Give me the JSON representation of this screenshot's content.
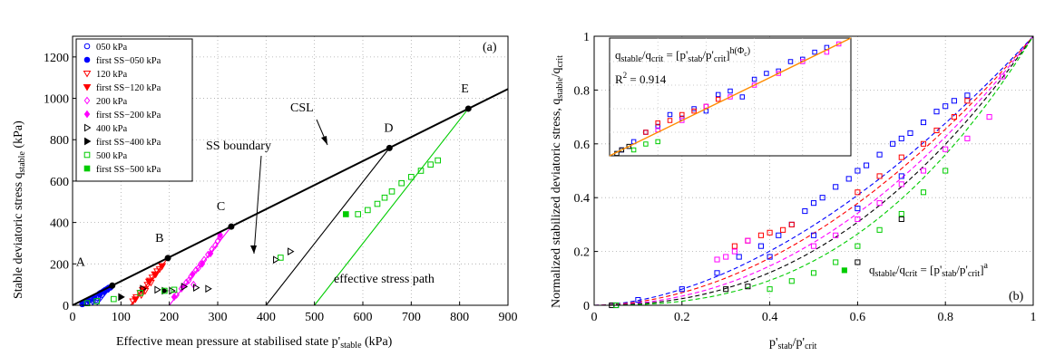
{
  "chart_data": [
    {
      "panel": "(a)",
      "type": "scatter",
      "xlabel": "Effective mean pressure at stabilised state p'",
      "xlabel_sub": "stable",
      "xlabel_unit": " (kPa)",
      "ylabel": "Stable deviatoric stress q",
      "ylabel_sub": "stable",
      "ylabel_unit": " (kPa)",
      "xlim": [
        0,
        900
      ],
      "ylim": [
        0,
        1300
      ],
      "xticks": [
        0,
        100,
        200,
        300,
        400,
        500,
        600,
        700,
        800,
        900
      ],
      "yticks": [
        0,
        200,
        400,
        600,
        800,
        1000,
        1200
      ],
      "grid": true,
      "legend_position": "top-left",
      "colors": {
        "050": "#0000ff",
        "120": "#ff0000",
        "200": "#ff00ff",
        "400": "#000000",
        "500": "#00cc00"
      },
      "legend": [
        {
          "label": "050 kPa",
          "marker": "circle-open",
          "color": "#0000ff"
        },
        {
          "label": "first SS−050 kPa",
          "marker": "circle-filled",
          "color": "#0000ff"
        },
        {
          "label": "120 kPa",
          "marker": "tri-down-open",
          "color": "#ff0000"
        },
        {
          "label": "first SS−120 kPa",
          "marker": "tri-down-filled",
          "color": "#ff0000"
        },
        {
          "label": "200 kPa",
          "marker": "diamond-open",
          "color": "#ff00ff"
        },
        {
          "label": "first SS−200 kPa",
          "marker": "diamond-filled",
          "color": "#ff00ff"
        },
        {
          "label": "400 kPa",
          "marker": "tri-right-open",
          "color": "#000000"
        },
        {
          "label": "first SS−400 kPa",
          "marker": "tri-right-filled",
          "color": "#000000"
        },
        {
          "label": "500 kPa",
          "marker": "square-open",
          "color": "#00cc00"
        },
        {
          "label": "first SS−500 kPa",
          "marker": "square-filled",
          "color": "#00cc00"
        }
      ],
      "csl": {
        "label": "CSL",
        "x": [
          0,
          900
        ],
        "y": [
          0,
          1045
        ]
      },
      "points_on_csl": [
        {
          "label": "A",
          "x": 82,
          "y": 95
        },
        {
          "label": "B",
          "x": 197,
          "y": 228
        },
        {
          "label": "C",
          "x": 328,
          "y": 380
        },
        {
          "label": "D",
          "x": 655,
          "y": 760
        },
        {
          "label": "E",
          "x": 818,
          "y": 950
        }
      ],
      "stress_paths": [
        {
          "color": "#0000ff",
          "x": [
            50,
            82
          ],
          "y": [
            0,
            95
          ]
        },
        {
          "color": "#ff0000",
          "x": [
            120,
            197
          ],
          "y": [
            0,
            228
          ]
        },
        {
          "color": "#ff00ff",
          "x": [
            200,
            328
          ],
          "y": [
            0,
            380
          ]
        },
        {
          "color": "#000000",
          "x": [
            400,
            655
          ],
          "y": [
            0,
            760
          ]
        },
        {
          "color": "#00cc00",
          "x": [
            500,
            818
          ],
          "y": [
            0,
            950
          ]
        }
      ],
      "annotations": {
        "ss_boundary": "SS boundary",
        "effective_stress_path": "effective stress path",
        "csl": "CSL"
      },
      "series": [
        {
          "name": "050 kPa",
          "color": "#0000ff",
          "marker": "circle-open",
          "x": [
            20,
            28,
            35,
            40,
            45,
            50,
            55,
            58,
            62,
            65,
            68,
            72,
            75,
            30,
            42,
            52,
            60,
            48,
            38
          ],
          "y": [
            5,
            15,
            25,
            30,
            40,
            45,
            55,
            60,
            65,
            70,
            75,
            80,
            85,
            10,
            20,
            35,
            50,
            25,
            12
          ]
        },
        {
          "name": "first SS−050 kPa",
          "color": "#0000ff",
          "marker": "circle-filled",
          "x": [
            22,
            33,
            44,
            56,
            66,
            72,
            78
          ],
          "y": [
            8,
            22,
            36,
            52,
            66,
            75,
            85
          ]
        },
        {
          "name": "120 kPa",
          "color": "#ff0000",
          "marker": "tri-down-open",
          "x": [
            125,
            132,
            140,
            148,
            155,
            160,
            165,
            170,
            175,
            180,
            185,
            150,
            162,
            142
          ],
          "y": [
            20,
            40,
            60,
            80,
            100,
            120,
            135,
            150,
            165,
            175,
            190,
            70,
            110,
            50
          ]
        },
        {
          "name": "first SS−120 kPa",
          "color": "#ff0000",
          "marker": "tri-down-filled",
          "x": [
            130,
            145,
            158,
            172,
            185
          ],
          "y": [
            30,
            75,
            115,
            150,
            190
          ]
        },
        {
          "name": "200 kPa",
          "color": "#ff00ff",
          "marker": "diamond-open",
          "x": [
            215,
            225,
            235,
            245,
            255,
            265,
            272,
            280,
            288,
            295,
            300,
            305,
            240,
            260,
            250
          ],
          "y": [
            50,
            80,
            110,
            140,
            170,
            200,
            220,
            245,
            270,
            290,
            310,
            330,
            120,
            180,
            100
          ]
        },
        {
          "name": "first SS−200 kPa",
          "color": "#ff00ff",
          "marker": "diamond-filled",
          "x": [
            210,
            228,
            248,
            268,
            285,
            305
          ],
          "y": [
            40,
            90,
            150,
            200,
            250,
            340
          ]
        },
        {
          "name": "400 kPa",
          "color": "#000000",
          "marker": "tri-right-open",
          "x": [
            145,
            175,
            205,
            230,
            255,
            280,
            420,
            450
          ],
          "y": [
            80,
            75,
            70,
            90,
            85,
            80,
            220,
            260
          ]
        },
        {
          "name": "first SS−400 kPa",
          "color": "#000000",
          "marker": "tri-right-filled",
          "x": [
            100,
            190
          ],
          "y": [
            40,
            70
          ]
        },
        {
          "name": "500 kPa",
          "color": "#00cc00",
          "marker": "square-open",
          "x": [
            30,
            50,
            85,
            140,
            190,
            210,
            430,
            590,
            610,
            630,
            645,
            660,
            680,
            700,
            720,
            740,
            755
          ],
          "y": [
            10,
            20,
            30,
            60,
            70,
            75,
            230,
            440,
            460,
            490,
            520,
            550,
            590,
            620,
            650,
            680,
            700
          ]
        },
        {
          "name": "first SS−500 kPa",
          "color": "#00cc00",
          "marker": "square-filled",
          "x": [
            565
          ],
          "y": [
            440
          ]
        }
      ]
    },
    {
      "panel": "(b)",
      "type": "scatter",
      "xlabel": "p'",
      "xlabel_sub1": "stab",
      "xlabel_mid": "/p'",
      "xlabel_sub2": "crit",
      "ylabel": "Normalized stabilized deviatoric stress, q",
      "ylabel_sub1": "stable",
      "ylabel_mid": "/q",
      "ylabel_sub2": "crit",
      "xlim": [
        0,
        1
      ],
      "ylim": [
        0,
        1
      ],
      "xticks": [
        0,
        0.2,
        0.4,
        0.6,
        0.8,
        1
      ],
      "yticks": [
        0,
        0.2,
        0.4,
        0.6,
        0.8,
        1
      ],
      "grid": true,
      "formula_main": {
        "q": "q",
        "sub1": "stable",
        "mid": "/q",
        "sub2": "crit",
        "eq": " = [p'",
        "sub3": "stab",
        "mid2": "/p'",
        "sub4": "crit",
        "close": "]",
        "exp": "a"
      },
      "formula_inset": {
        "q": "q",
        "sub1": "stable",
        "mid": "/q",
        "sub2": "crit",
        "eq": " = [p'",
        "sub3": "stab",
        "mid2": "/p'",
        "sub4": "crit",
        "close": "]",
        "exp": "h(Φ",
        "exp_sub": "c",
        "exp_close": ")"
      },
      "r2_label": "R",
      "r2_exp": "2",
      "r2_value": " = 0.914",
      "fit_curves": [
        {
          "color": "#0000ff",
          "exponent": 1.75
        },
        {
          "color": "#ff0000",
          "exponent": 1.9
        },
        {
          "color": "#ff00ff",
          "exponent": 2.1
        },
        {
          "color": "#000000",
          "exponent": 2.3
        },
        {
          "color": "#00cc00",
          "exponent": 2.6
        }
      ],
      "series": [
        {
          "name": "050 kPa",
          "color": "#0000ff",
          "marker": "square-open",
          "x": [
            0.05,
            0.1,
            0.2,
            0.28,
            0.33,
            0.38,
            0.42,
            0.45,
            0.48,
            0.5,
            0.52,
            0.55,
            0.58,
            0.6,
            0.62,
            0.65,
            0.68,
            0.7,
            0.72,
            0.75,
            0.78,
            0.8,
            0.82,
            0.85,
            0.4,
            0.5,
            0.6,
            0.7
          ],
          "y": [
            0.0,
            0.02,
            0.06,
            0.12,
            0.18,
            0.22,
            0.26,
            0.3,
            0.35,
            0.38,
            0.4,
            0.44,
            0.47,
            0.5,
            0.52,
            0.56,
            0.6,
            0.62,
            0.64,
            0.68,
            0.72,
            0.74,
            0.76,
            0.78,
            0.18,
            0.26,
            0.36,
            0.48
          ]
        },
        {
          "name": "120 kPa",
          "color": "#ff0000",
          "marker": "square-open",
          "x": [
            0.32,
            0.35,
            0.38,
            0.4,
            0.43,
            0.45,
            0.6,
            0.65,
            0.7,
            0.75,
            0.78,
            0.82,
            0.85
          ],
          "y": [
            0.22,
            0.24,
            0.26,
            0.27,
            0.28,
            0.3,
            0.42,
            0.48,
            0.55,
            0.6,
            0.65,
            0.7,
            0.76
          ]
        },
        {
          "name": "200 kPa",
          "color": "#ff00ff",
          "marker": "square-open",
          "x": [
            0.28,
            0.3,
            0.32,
            0.35,
            0.5,
            0.55,
            0.6,
            0.65,
            0.7,
            0.75,
            0.8,
            0.85,
            0.9,
            0.93
          ],
          "y": [
            0.17,
            0.18,
            0.2,
            0.24,
            0.22,
            0.26,
            0.32,
            0.38,
            0.45,
            0.5,
            0.58,
            0.62,
            0.7,
            0.85
          ]
        },
        {
          "name": "400 kPa",
          "color": "#000000",
          "marker": "square-open",
          "x": [
            0.04,
            0.3,
            0.35,
            0.6,
            0.7
          ],
          "y": [
            0.0,
            0.06,
            0.07,
            0.16,
            0.32
          ]
        },
        {
          "name": "500 kPa",
          "color": "#00cc00",
          "marker": "square-open",
          "x": [
            0.05,
            0.4,
            0.45,
            0.5,
            0.55,
            0.6,
            0.65,
            0.7,
            0.75,
            0.8
          ],
          "y": [
            0.0,
            0.06,
            0.09,
            0.12,
            0.16,
            0.22,
            0.28,
            0.34,
            0.42,
            0.5
          ]
        },
        {
          "name": "first SS−500 kPa",
          "color": "#00cc00",
          "marker": "square-filled",
          "x": [
            0.57
          ],
          "y": [
            0.13
          ]
        }
      ],
      "inset": {
        "xlim": [
          0,
          1
        ],
        "ylim": [
          0,
          1
        ],
        "line_color": "#ff8c00",
        "series": [
          {
            "color": "#0000ff",
            "x": [
              0.05,
              0.1,
              0.15,
              0.2,
              0.25,
              0.3,
              0.35,
              0.4,
              0.45,
              0.5,
              0.55,
              0.6,
              0.65,
              0.7,
              0.75,
              0.8,
              0.85,
              0.9
            ],
            "y": [
              0.05,
              0.12,
              0.2,
              0.25,
              0.35,
              0.32,
              0.4,
              0.38,
              0.52,
              0.55,
              0.5,
              0.65,
              0.7,
              0.72,
              0.8,
              0.82,
              0.88,
              0.92
            ]
          },
          {
            "color": "#ff0000",
            "x": [
              0.15,
              0.2,
              0.25,
              0.3,
              0.35,
              0.4,
              0.45
            ],
            "y": [
              0.2,
              0.28,
              0.3,
              0.35,
              0.38,
              0.42,
              0.48
            ]
          },
          {
            "color": "#ff00ff",
            "x": [
              0.2,
              0.3,
              0.4,
              0.5,
              0.6,
              0.7,
              0.8,
              0.9,
              0.95
            ],
            "y": [
              0.22,
              0.3,
              0.42,
              0.5,
              0.6,
              0.7,
              0.8,
              0.88,
              0.95
            ]
          },
          {
            "color": "#000000",
            "x": [
              0.03,
              0.05,
              0.08
            ],
            "y": [
              0.02,
              0.05,
              0.08
            ]
          },
          {
            "color": "#00cc00",
            "x": [
              0.1,
              0.15,
              0.2
            ],
            "y": [
              0.05,
              0.1,
              0.12
            ]
          }
        ]
      }
    }
  ]
}
